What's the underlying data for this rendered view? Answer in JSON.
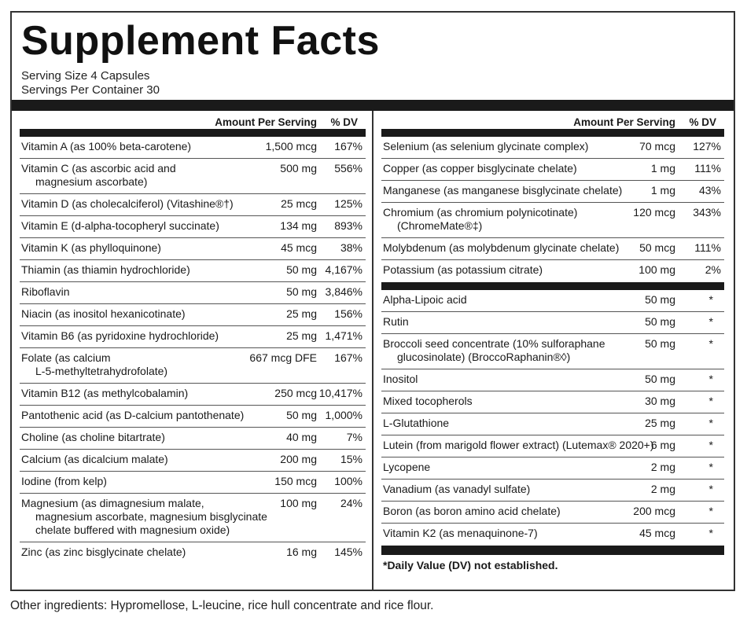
{
  "title": "Supplement Facts",
  "serving_size": "Serving Size 4 Capsules",
  "servings_per_container": "Servings Per Container 30",
  "header": {
    "amount": "Amount Per Serving",
    "dv": "% DV"
  },
  "left_rows": [
    {
      "lines": [
        "Vitamin A (as 100% beta-carotene)"
      ],
      "amount": "1,500 mcg",
      "dv": "167%"
    },
    {
      "lines": [
        "Vitamin C (as ascorbic acid and",
        "magnesium ascorbate)"
      ],
      "amount": "500 mg",
      "dv": "556%"
    },
    {
      "lines": [
        "Vitamin D (as cholecalciferol) (Vitashine®†)"
      ],
      "amount": "25 mcg",
      "dv": "125%"
    },
    {
      "lines": [
        "Vitamin E (d-alpha-tocopheryl succinate)"
      ],
      "amount": "134 mg",
      "dv": "893%"
    },
    {
      "lines": [
        "Vitamin K (as phylloquinone)"
      ],
      "amount": "45 mcg",
      "dv": "38%"
    },
    {
      "lines": [
        "Thiamin (as thiamin hydrochloride)"
      ],
      "amount": "50 mg",
      "dv": "4,167%"
    },
    {
      "lines": [
        "Riboflavin"
      ],
      "amount": "50 mg",
      "dv": "3,846%"
    },
    {
      "lines": [
        "Niacin (as inositol hexanicotinate)"
      ],
      "amount": "25 mg",
      "dv": "156%"
    },
    {
      "lines": [
        "Vitamin B6 (as pyridoxine hydrochloride)"
      ],
      "amount": "25 mg",
      "dv": "1,471%"
    },
    {
      "lines": [
        "Folate (as calcium",
        "L-5-methyltetrahydrofolate)"
      ],
      "amount": "667 mcg DFE",
      "dv": "167%"
    },
    {
      "lines": [
        "Vitamin B12 (as methylcobalamin)"
      ],
      "amount": "250 mcg",
      "dv": "10,417%"
    },
    {
      "lines": [
        "Pantothenic acid (as D-calcium pantothenate)"
      ],
      "amount": "50 mg",
      "dv": "1,000%"
    },
    {
      "lines": [
        "Choline (as choline bitartrate)"
      ],
      "amount": "40 mg",
      "dv": "7%"
    },
    {
      "lines": [
        "Calcium (as dicalcium malate)"
      ],
      "amount": "200 mg",
      "dv": "15%"
    },
    {
      "lines": [
        "Iodine (from kelp)"
      ],
      "amount": "150 mcg",
      "dv": "100%"
    },
    {
      "lines": [
        "Magnesium (as dimagnesium malate,",
        "magnesium ascorbate, magnesium bisglycinate",
        "chelate buffered with magnesium oxide)"
      ],
      "amount": "100 mg",
      "dv": "24%"
    },
    {
      "lines": [
        "Zinc (as zinc bisglycinate chelate)"
      ],
      "amount": "16 mg",
      "dv": "145%"
    }
  ],
  "right_rows_top": [
    {
      "lines": [
        "Selenium (as selenium glycinate complex)"
      ],
      "amount": "70 mcg",
      "dv": "127%"
    },
    {
      "lines": [
        "Copper (as copper bisglycinate chelate)"
      ],
      "amount": "1 mg",
      "dv": "111%"
    },
    {
      "lines": [
        "Manganese (as manganese bisglycinate chelate)"
      ],
      "amount": "1 mg",
      "dv": "43%"
    },
    {
      "lines": [
        "Chromium (as chromium polynicotinate)",
        "(ChromeMate®‡)"
      ],
      "amount": "120 mcg",
      "dv": "343%"
    },
    {
      "lines": [
        "Molybdenum (as molybdenum glycinate chelate)"
      ],
      "amount": "50 mcg",
      "dv": "111%"
    },
    {
      "lines": [
        "Potassium (as potassium citrate)"
      ],
      "amount": "100 mg",
      "dv": "2%"
    }
  ],
  "right_rows_bottom": [
    {
      "lines": [
        "Alpha-Lipoic acid"
      ],
      "amount": "50 mg",
      "dv": "*"
    },
    {
      "lines": [
        "Rutin"
      ],
      "amount": "50 mg",
      "dv": "*"
    },
    {
      "lines": [
        "Broccoli seed concentrate (10% sulforaphane",
        "glucosinolate) (BroccoRaphanin®◊)"
      ],
      "amount": "50 mg",
      "dv": "*"
    },
    {
      "lines": [
        "Inositol"
      ],
      "amount": "50 mg",
      "dv": "*"
    },
    {
      "lines": [
        "Mixed tocopherols"
      ],
      "amount": "30 mg",
      "dv": "*"
    },
    {
      "lines": [
        "L-Glutathione"
      ],
      "amount": "25 mg",
      "dv": "*"
    },
    {
      "lines": [
        "Lutein (from marigold flower extract) (Lutemax® 2020+)"
      ],
      "amount": "6 mg",
      "dv": "*"
    },
    {
      "lines": [
        "Lycopene"
      ],
      "amount": "2 mg",
      "dv": "*"
    },
    {
      "lines": [
        "Vanadium (as vanadyl sulfate)"
      ],
      "amount": "2 mg",
      "dv": "*"
    },
    {
      "lines": [
        "Boron (as boron amino acid chelate)"
      ],
      "amount": "200 mcg",
      "dv": "*"
    },
    {
      "lines": [
        "Vitamin K2 (as menaquinone-7)"
      ],
      "amount": "45 mcg",
      "dv": "*"
    }
  ],
  "footnote": "*Daily Value (DV) not established.",
  "other_ingredients": "Other ingredients: Hypromellose, L-leucine, rice hull concentrate and rice flour."
}
